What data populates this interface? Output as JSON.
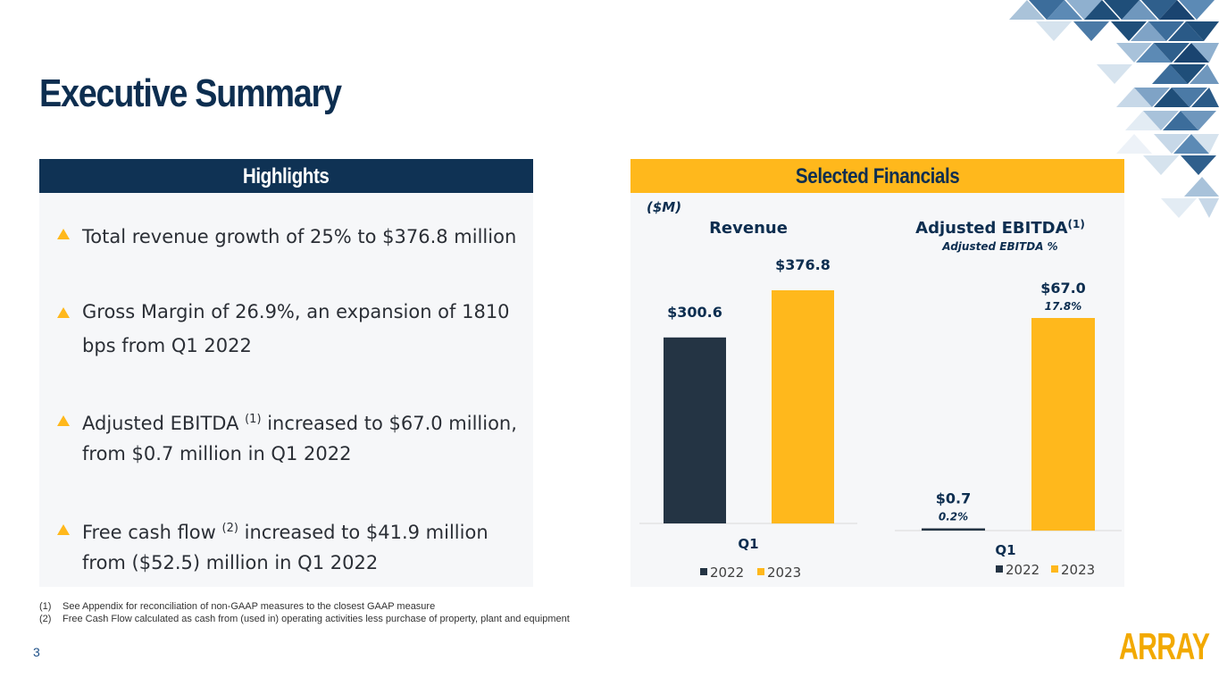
{
  "page": {
    "title": "Executive Summary",
    "page_number": "3",
    "logo_text": "ARRAY"
  },
  "highlights": {
    "header": "Highlights",
    "items": [
      {
        "before": "Total revenue growth of 25% to $376.8 million",
        "sup": "",
        "after": ""
      },
      {
        "before": "Gross Margin of 26.9%, an expansion of 1810 bps from Q1 2022",
        "sup": "",
        "after": ""
      },
      {
        "before": "Adjusted EBITDA ",
        "sup": "(1)",
        "after": " increased to $67.0 million, from $0.7 million in Q1 2022"
      },
      {
        "before": "Free cash flow ",
        "sup": "(2)",
        "after": " increased to $41.9 million from ($52.5) million in Q1 2022"
      }
    ]
  },
  "financials": {
    "header": "Selected Financials",
    "units": "($M)"
  },
  "footnotes": [
    {
      "num": "(1)",
      "text": "See Appendix for reconciliation of non-GAAP measures to the closest GAAP measure"
    },
    {
      "num": "(2)",
      "text": "Free Cash Flow calculated as cash from (used in) operating activities less purchase of property, plant and equipment"
    }
  ],
  "colors": {
    "navy": "#0f3254",
    "bar_2022": "#243444",
    "bar_2023": "#ffb81c",
    "accent": "#ffb81c"
  },
  "chart_data": [
    {
      "type": "bar",
      "title": "Revenue",
      "categories": [
        "Q1"
      ],
      "series": [
        {
          "name": "2022",
          "values": [
            300.6
          ],
          "labels": [
            "$300.6"
          ]
        },
        {
          "name": "2023",
          "values": [
            376.8
          ],
          "labels": [
            "$376.8"
          ]
        }
      ],
      "ylim": [
        0,
        376.8
      ],
      "legend": "bottom"
    },
    {
      "type": "bar",
      "title": "Adjusted EBITDA",
      "title_sup": "(1)",
      "subtitle": "Adjusted EBITDA %",
      "categories": [
        "Q1"
      ],
      "series": [
        {
          "name": "2022",
          "values": [
            0.7
          ],
          "labels": [
            "$0.7"
          ],
          "pct_labels": [
            "0.2%"
          ]
        },
        {
          "name": "2023",
          "values": [
            67.0
          ],
          "labels": [
            "$67.0"
          ],
          "pct_labels": [
            "17.8%"
          ]
        }
      ],
      "ylim": [
        0,
        67.0
      ],
      "legend": "bottom"
    }
  ]
}
